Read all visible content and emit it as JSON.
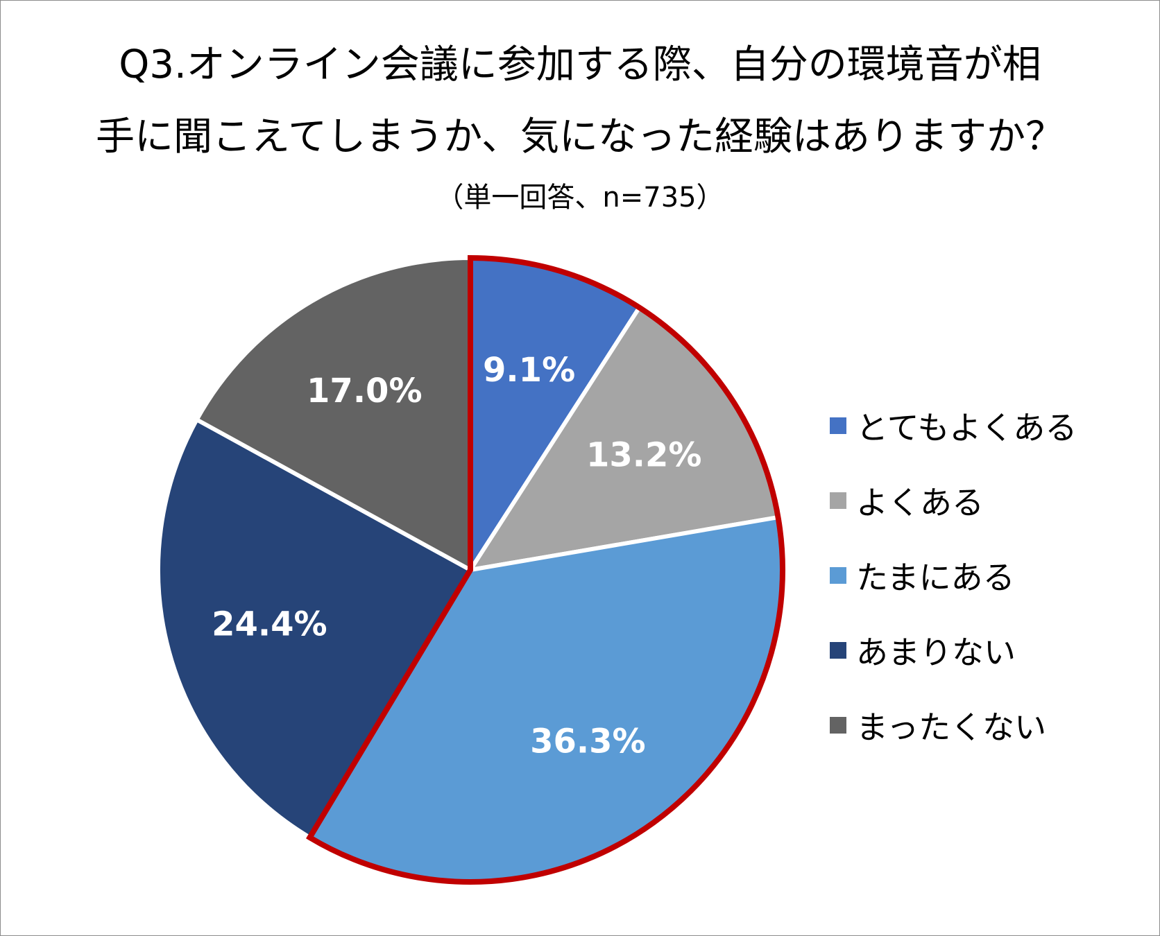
{
  "chart_data": {
    "type": "pie",
    "title": "Q3.オンライン会議に参加する際、自分の環境音が相手に聞こえてしまうか、気になった経験はありますか？",
    "title_lines": [
      "Q3.オンライン会議に参加する際、自分の環境音が相",
      "手に聞こえてしまうか、気になった経験はありますか？"
    ],
    "subtitle": "（単一回答、n=735）",
    "categories": [
      "とてもよくある",
      "よくある",
      "たまにある",
      "あまりない",
      "まったくない"
    ],
    "values": [
      9.1,
      13.2,
      36.3,
      24.4,
      17.0
    ],
    "data_labels": [
      "9.1%",
      "13.2%",
      "36.3%",
      "24.4%",
      "17.0%"
    ],
    "colors": [
      "#4472C4",
      "#A5A5A5",
      "#5B9BD5",
      "#264478",
      "#636363"
    ],
    "highlight": {
      "categories": [
        "とてもよくある",
        "よくある",
        "たまにある"
      ],
      "outline_color": "#C00000"
    },
    "start_angle": "12 o'clock",
    "direction": "clockwise",
    "legend_position": "right"
  }
}
